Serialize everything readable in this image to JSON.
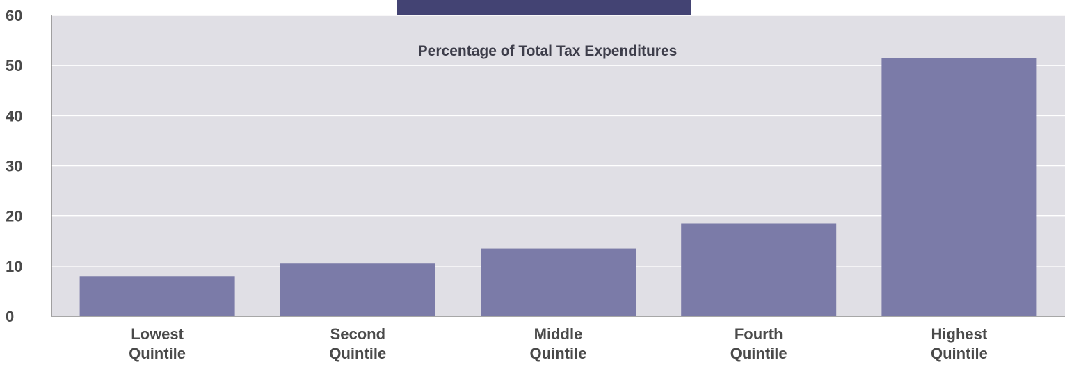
{
  "chart_data": {
    "type": "bar",
    "title": "Percentage of Total Tax Expenditures",
    "categories": [
      [
        "Lowest",
        "Quintile"
      ],
      [
        "Second",
        "Quintile"
      ],
      [
        "Middle",
        "Quintile"
      ],
      [
        "Fourth",
        "Quintile"
      ],
      [
        "Highest",
        "Quintile"
      ]
    ],
    "values": [
      8,
      10.5,
      13.5,
      18.5,
      51.5
    ],
    "ylim": [
      0,
      60
    ],
    "yticks": [
      0,
      10,
      20,
      30,
      40,
      50,
      60
    ],
    "grid": true,
    "colors": {
      "plot_background": "#e0dfe5",
      "bar": "#7b7ba8",
      "header_band": "#434373",
      "gridline": "#ffffff",
      "axis": "#8a8a8a",
      "text": "#4a4a4a"
    }
  }
}
